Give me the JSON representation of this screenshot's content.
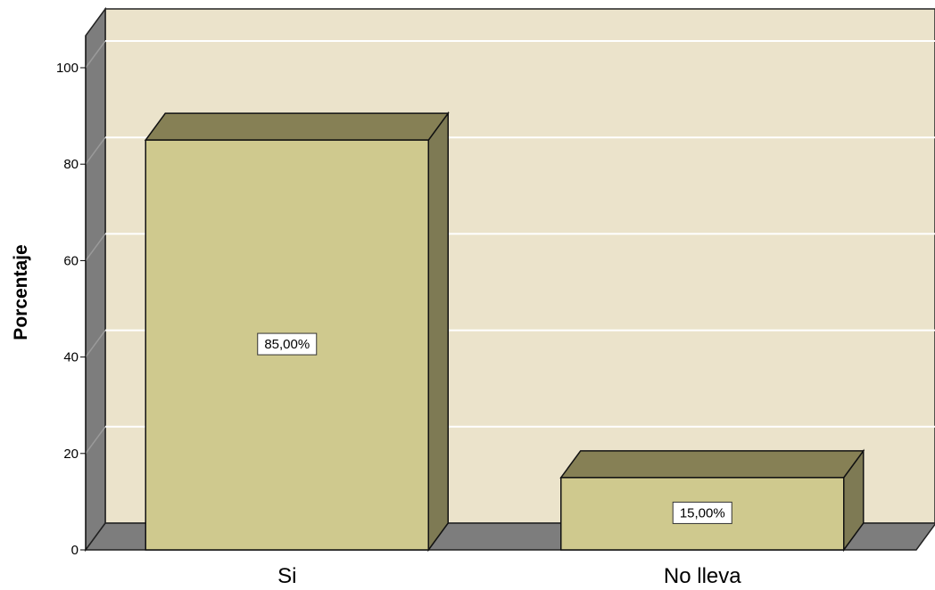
{
  "chart_data": {
    "type": "bar",
    "categories": [
      "Si",
      "No lleva"
    ],
    "values": [
      85.0,
      15.0
    ],
    "data_labels": [
      "85,00%",
      "15,00%"
    ],
    "ylabel": "Porcentaje",
    "xlabel": "",
    "ylim": [
      0,
      100
    ],
    "yticks": [
      "0",
      "20",
      "40",
      "60",
      "80",
      "100"
    ],
    "grid": true,
    "style": "3d",
    "colors": {
      "wall": "#ebe3cb",
      "side_wall": "#7d7d7d",
      "floor": "#7d7d7d",
      "bar_front": "#cfc98e",
      "bar_top": "#868055",
      "bar_side": "#7e7a54",
      "gridline": "#ffffff"
    }
  }
}
